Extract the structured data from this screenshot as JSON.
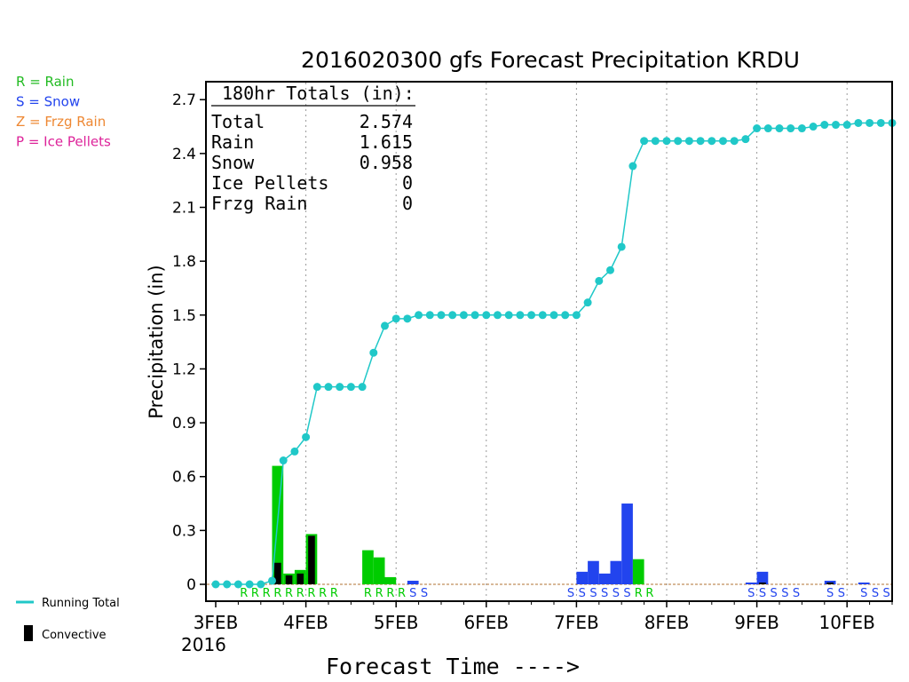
{
  "chart_data": {
    "type": "bar",
    "title": "2016020300 gfs Forecast Precipitation KRDU",
    "xlabel": "Forecast Time ---->",
    "ylabel": "Precipitation (in)",
    "ylim": [
      0,
      2.8
    ],
    "y_ticks": [
      "0",
      "0.3",
      "0.6",
      "0.9",
      "1.2",
      "1.5",
      "1.8",
      "2.1",
      "2.4",
      "2.7"
    ],
    "x_ticks": [
      "3FEB",
      "4FEB",
      "5FEB",
      "6FEB",
      "7FEB",
      "8FEB",
      "9FEB",
      "10FEB"
    ],
    "x_year_label": "2016",
    "grid": "vertical dotted at each day",
    "x_range_hours": [
      0,
      180
    ],
    "ptype_legend": [
      {
        "text": "R = Rain",
        "color": "#22bb22"
      },
      {
        "text": "S = Snow",
        "color": "#2244ee"
      },
      {
        "text": "Z = Frzg Rain",
        "color": "#ee8833"
      },
      {
        "text": "P = Ice Pellets",
        "color": "#dd2299"
      }
    ],
    "series_legend": [
      {
        "text": "Running Total",
        "color": "#20c8c8",
        "kind": "line"
      },
      {
        "text": "Convective",
        "color": "#000000",
        "kind": "bar"
      }
    ],
    "totals_box": {
      "heading": "180hr Totals (in):",
      "rows": [
        {
          "label": "Total",
          "value": "2.574"
        },
        {
          "label": "Rain",
          "value": "1.615"
        },
        {
          "label": "Snow",
          "value": "0.958"
        },
        {
          "label": "Ice Pellets",
          "value": "0"
        },
        {
          "label": "Frzg Rain",
          "value": "0"
        }
      ]
    },
    "colors": {
      "rain": "#00cc00",
      "snow": "#2244ee",
      "convective": "#000000",
      "running_total": "#20c8c8"
    },
    "running_total": {
      "hours": [
        0,
        3,
        6,
        9,
        12,
        15,
        18,
        21,
        24,
        27,
        30,
        33,
        36,
        39,
        42,
        45,
        48,
        51,
        54,
        57,
        60,
        63,
        66,
        69,
        72,
        75,
        78,
        81,
        84,
        87,
        90,
        93,
        96,
        99,
        102,
        105,
        108,
        111,
        114,
        117,
        120,
        123,
        126,
        129,
        132,
        135,
        138,
        141,
        144,
        147,
        150,
        153,
        156,
        159,
        162,
        165,
        168,
        171,
        174,
        177,
        180
      ],
      "values": [
        0,
        0,
        0,
        0,
        0,
        0.02,
        0.69,
        0.74,
        0.82,
        1.1,
        1.1,
        1.1,
        1.1,
        1.1,
        1.29,
        1.44,
        1.48,
        1.48,
        1.5,
        1.5,
        1.5,
        1.5,
        1.5,
        1.5,
        1.5,
        1.5,
        1.5,
        1.5,
        1.5,
        1.5,
        1.5,
        1.5,
        1.5,
        1.57,
        1.69,
        1.75,
        1.88,
        2.33,
        2.47,
        2.47,
        2.47,
        2.47,
        2.47,
        2.47,
        2.47,
        2.47,
        2.47,
        2.48,
        2.54,
        2.54,
        2.54,
        2.54,
        2.54,
        2.55,
        2.56,
        2.56,
        2.56,
        2.57,
        2.57,
        2.57,
        2.57
      ]
    },
    "bars": [
      {
        "hour": 18,
        "type": "R",
        "value": 0.66,
        "convective": 0.12
      },
      {
        "hour": 21,
        "type": "R",
        "value": 0.06,
        "convective": 0.05
      },
      {
        "hour": 24,
        "type": "R",
        "value": 0.08,
        "convective": 0.06
      },
      {
        "hour": 27,
        "type": "R",
        "value": 0.28,
        "convective": 0.27
      },
      {
        "hour": 42,
        "type": "R",
        "value": 0.19,
        "convective": 0
      },
      {
        "hour": 45,
        "type": "R",
        "value": 0.15,
        "convective": 0
      },
      {
        "hour": 48,
        "type": "R",
        "value": 0.04,
        "convective": 0
      },
      {
        "hour": 54,
        "type": "S",
        "value": 0.02,
        "convective": 0
      },
      {
        "hour": 99,
        "type": "S",
        "value": 0.07,
        "convective": 0
      },
      {
        "hour": 102,
        "type": "S",
        "value": 0.13,
        "convective": 0
      },
      {
        "hour": 105,
        "type": "S",
        "value": 0.06,
        "convective": 0
      },
      {
        "hour": 108,
        "type": "S",
        "value": 0.13,
        "convective": 0
      },
      {
        "hour": 111,
        "type": "S",
        "value": 0.45,
        "convective": 0
      },
      {
        "hour": 114,
        "type": "R",
        "value": 0.14,
        "convective": 0
      },
      {
        "hour": 144,
        "type": "S",
        "value": 0.01,
        "convective": 0
      },
      {
        "hour": 147,
        "type": "S",
        "value": 0.07,
        "convective": 0.01
      },
      {
        "hour": 165,
        "type": "S",
        "value": 0.02,
        "convective": 0.01
      },
      {
        "hour": 174,
        "type": "S",
        "value": 0.01,
        "convective": 0
      }
    ],
    "ptype_markers": [
      {
        "hour": 9,
        "type": "R"
      },
      {
        "hour": 12,
        "type": "R"
      },
      {
        "hour": 15,
        "type": "R"
      },
      {
        "hour": 18,
        "type": "R"
      },
      {
        "hour": 21,
        "type": "R"
      },
      {
        "hour": 24,
        "type": "R"
      },
      {
        "hour": 27,
        "type": "R"
      },
      {
        "hour": 30,
        "type": "R"
      },
      {
        "hour": 33,
        "type": "R"
      },
      {
        "hour": 42,
        "type": "R"
      },
      {
        "hour": 45,
        "type": "R"
      },
      {
        "hour": 48,
        "type": "R"
      },
      {
        "hour": 51,
        "type": "R"
      },
      {
        "hour": 54,
        "type": "S"
      },
      {
        "hour": 57,
        "type": "S"
      },
      {
        "hour": 96,
        "type": "S"
      },
      {
        "hour": 99,
        "type": "S"
      },
      {
        "hour": 102,
        "type": "S"
      },
      {
        "hour": 105,
        "type": "S"
      },
      {
        "hour": 108,
        "type": "S"
      },
      {
        "hour": 111,
        "type": "S"
      },
      {
        "hour": 114,
        "type": "R"
      },
      {
        "hour": 117,
        "type": "R"
      },
      {
        "hour": 144,
        "type": "S"
      },
      {
        "hour": 147,
        "type": "S"
      },
      {
        "hour": 150,
        "type": "S"
      },
      {
        "hour": 153,
        "type": "S"
      },
      {
        "hour": 156,
        "type": "S"
      },
      {
        "hour": 165,
        "type": "S"
      },
      {
        "hour": 168,
        "type": "S"
      },
      {
        "hour": 174,
        "type": "S"
      },
      {
        "hour": 177,
        "type": "S"
      },
      {
        "hour": 180,
        "type": "S"
      }
    ]
  }
}
